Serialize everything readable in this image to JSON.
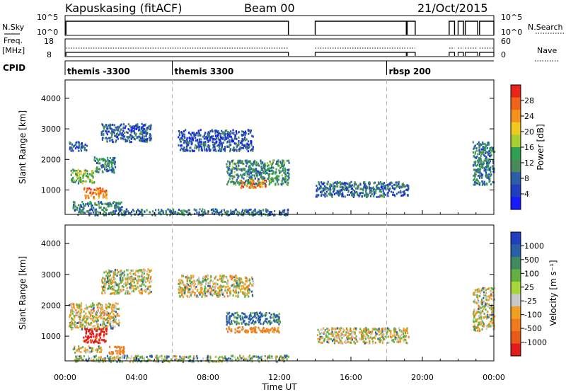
{
  "header": {
    "station": "Kapuskasing (fitACF)",
    "beam": "Beam 00",
    "date": "21/Oct/2015"
  },
  "strip_labels": {
    "nsky": "N.Sky",
    "nsearch": "N.Search",
    "freq": "Freq.",
    "freq_unit": "[MHz]",
    "nave": "Nave",
    "cpid": "CPID",
    "nsky_ticks": [
      "10^5",
      "10^0"
    ],
    "nsearch_ticks": [
      "10^5",
      "10^0"
    ],
    "freq_ticks": [
      "18",
      "8"
    ],
    "nave_ticks": [
      "60",
      "0"
    ]
  },
  "cpid_segments": [
    {
      "start_hr": 0.0,
      "label": "themis -3300"
    },
    {
      "start_hr": 6.0,
      "label": "themis 3300"
    },
    {
      "start_hr": 18.0,
      "label": "rbsp 200"
    }
  ],
  "power_colorbar": {
    "title": "Power [dB]",
    "ticks": [
      "28",
      "24",
      "20",
      "16",
      "12",
      "8",
      "4"
    ],
    "colors": [
      "#e8241b",
      "#f0631b",
      "#f5921e",
      "#f0c81e",
      "#a8cf32",
      "#2fa050",
      "#4a8a5a",
      "#2a5fa8",
      "#1f3fbf",
      "#1919ff"
    ]
  },
  "velocity_colorbar": {
    "title": "Velocity [m s⁻¹]",
    "ticks": [
      "1000",
      "500",
      "100",
      "25",
      "-25",
      "-100",
      "-500",
      "-1000"
    ],
    "colors": [
      "#1f3fbf",
      "#2a5fa8",
      "#3f8a5f",
      "#63b042",
      "#a8d63a",
      "#c8c8c8",
      "#f0a020",
      "#f07a1e",
      "#e85a1a",
      "#e21b1b"
    ]
  },
  "chart_data": [
    {
      "type": "heatmap",
      "panel": "power",
      "xlabel": "Time UT",
      "ylabel": "Slant Range [km]",
      "xlim": [
        0,
        24
      ],
      "ylim": [
        200,
        4600
      ],
      "x_ticks": [
        "00:00",
        "04:00",
        "08:00",
        "12:00",
        "16:00",
        "20:00",
        "00:00"
      ],
      "y_ticks": [
        1000,
        2000,
        3000,
        4000
      ],
      "regions": [
        {
          "t0": 0.3,
          "t1": 1.6,
          "r0": 1250,
          "r1": 1700,
          "level": 14
        },
        {
          "t0": 1.6,
          "t1": 2.8,
          "r0": 1600,
          "r1": 2100,
          "level": 10
        },
        {
          "t0": 1.0,
          "t1": 2.3,
          "r0": 750,
          "r1": 1100,
          "level": 25
        },
        {
          "t0": 0.4,
          "t1": 3.2,
          "r0": 430,
          "r1": 650,
          "level": 10
        },
        {
          "t0": 0.2,
          "t1": 1.2,
          "r0": 2300,
          "r1": 2600,
          "level": 6
        },
        {
          "t0": 2.0,
          "t1": 4.8,
          "r0": 2600,
          "r1": 3200,
          "level": 6
        },
        {
          "t0": 6.3,
          "t1": 10.5,
          "r0": 2300,
          "r1": 3000,
          "level": 5
        },
        {
          "t0": 9.0,
          "t1": 12.5,
          "r0": 1200,
          "r1": 2000,
          "level": 10
        },
        {
          "t0": 9.8,
          "t1": 11.2,
          "r0": 1100,
          "r1": 1350,
          "level": 24
        },
        {
          "t0": 14.0,
          "t1": 19.2,
          "r0": 800,
          "r1": 1300,
          "level": 7
        },
        {
          "t0": 22.8,
          "t1": 24.0,
          "r0": 1200,
          "r1": 2600,
          "level": 9
        },
        {
          "t0": 0.5,
          "t1": 12.5,
          "r0": 200,
          "r1": 400,
          "level": 8
        }
      ]
    },
    {
      "type": "heatmap",
      "panel": "velocity",
      "xlabel": "Time UT",
      "ylabel": "Slant Range [km]",
      "xlim": [
        0,
        24
      ],
      "ylim": [
        200,
        4600
      ],
      "x_ticks": [
        "00:00",
        "04:00",
        "08:00",
        "12:00",
        "16:00",
        "20:00",
        "00:00"
      ],
      "y_ticks": [
        1000,
        2000,
        3000,
        4000
      ],
      "regions": [
        {
          "t0": 0.2,
          "t1": 3.0,
          "r0": 1250,
          "r1": 2100,
          "level": 0
        },
        {
          "t0": 1.0,
          "t1": 2.3,
          "r0": 800,
          "r1": 1300,
          "level": -600
        },
        {
          "t0": 2.4,
          "t1": 3.3,
          "r0": 450,
          "r1": 700,
          "level": -300
        },
        {
          "t0": 0.4,
          "t1": 2.0,
          "r0": 500,
          "r1": 700,
          "level": 0
        },
        {
          "t0": 2.0,
          "t1": 4.8,
          "r0": 2400,
          "r1": 3200,
          "level": 0
        },
        {
          "t0": 6.3,
          "t1": 10.5,
          "r0": 2300,
          "r1": 3000,
          "level": 0
        },
        {
          "t0": 9.0,
          "t1": 12.0,
          "r0": 1400,
          "r1": 1800,
          "level": 150
        },
        {
          "t0": 9.0,
          "t1": 12.0,
          "r0": 1150,
          "r1": 1350,
          "level": -150
        },
        {
          "t0": 14.0,
          "t1": 19.2,
          "r0": 800,
          "r1": 1300,
          "level": 0
        },
        {
          "t0": 22.8,
          "t1": 24.0,
          "r0": 1200,
          "r1": 2600,
          "level": 0
        },
        {
          "t0": 0.5,
          "t1": 12.5,
          "r0": 200,
          "r1": 400,
          "level": 40
        }
      ]
    }
  ]
}
